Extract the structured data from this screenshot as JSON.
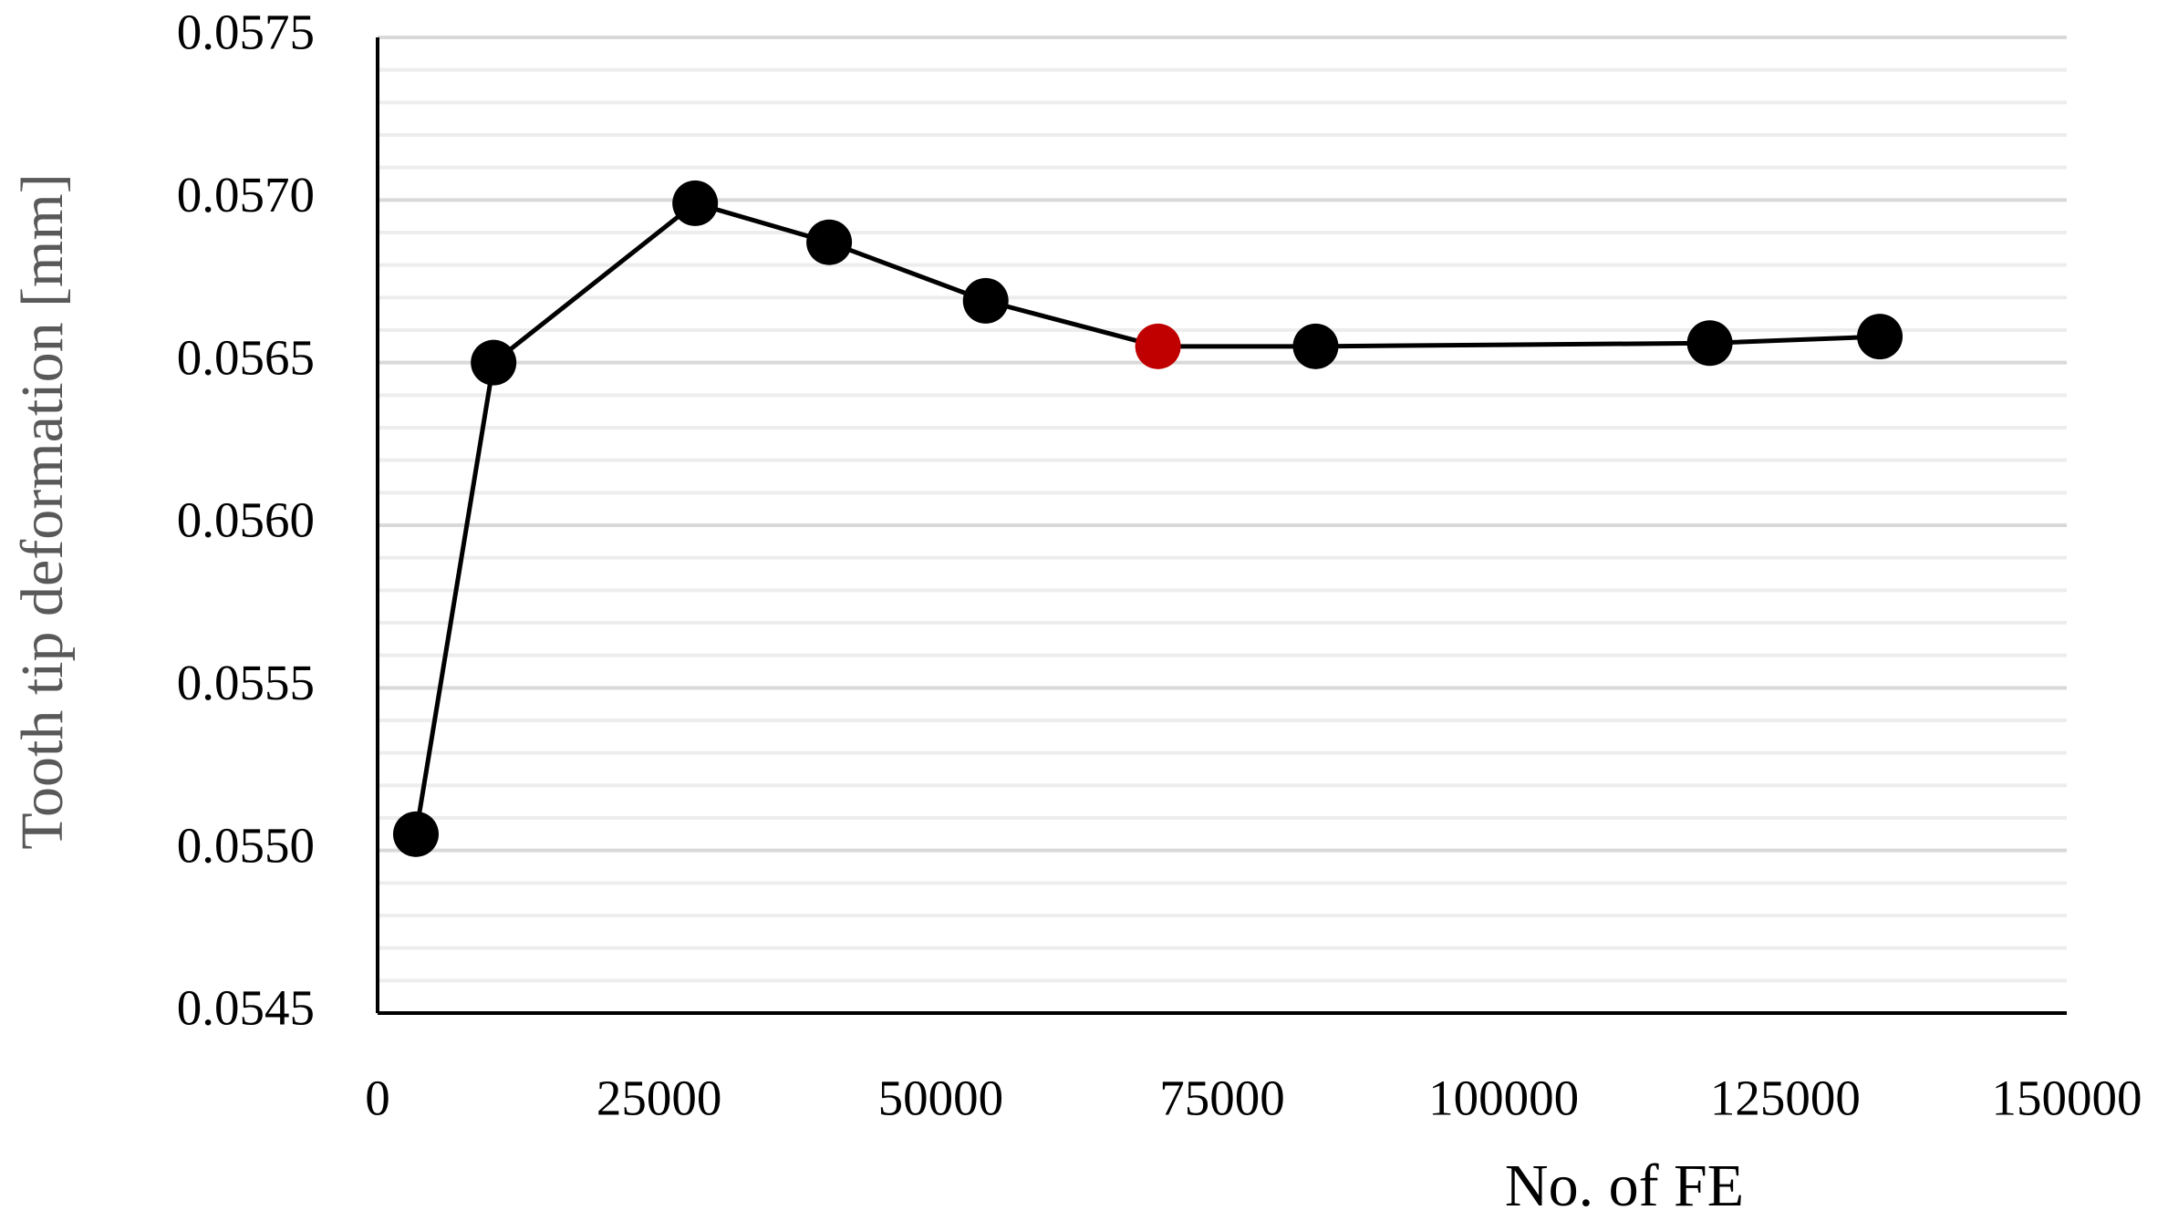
{
  "chart_data": {
    "type": "line",
    "xlabel": "No. of FE",
    "ylabel": "Tooth tip deformation [mm]",
    "x": [
      3400,
      10300,
      28200,
      40100,
      54000,
      69300,
      83300,
      118300,
      133400
    ],
    "values": [
      0.05505,
      0.0565,
      0.05699,
      0.05687,
      0.05669,
      0.05655,
      0.05655,
      0.05656,
      0.05658
    ],
    "color": "#000000",
    "point_colors": [
      "#000000",
      "#000000",
      "#000000",
      "#000000",
      "#000000",
      "#c00000",
      "#000000",
      "#000000",
      "#000000"
    ],
    "xlim": [
      0,
      150000
    ],
    "xticks": [
      0,
      25000,
      50000,
      75000,
      100000,
      125000,
      150000
    ],
    "ylim": [
      0.0545,
      0.0575
    ],
    "yticks": [
      0.0545,
      {
        "value": 0.055,
        "label": "0.0550"
      },
      0.0555,
      {
        "value": 0.056,
        "label": "0.0560"
      },
      0.0565,
      {
        "value": 0.057,
        "label": "0.0570"
      },
      0.0575
    ],
    "grid": true,
    "minor_grid": true
  }
}
